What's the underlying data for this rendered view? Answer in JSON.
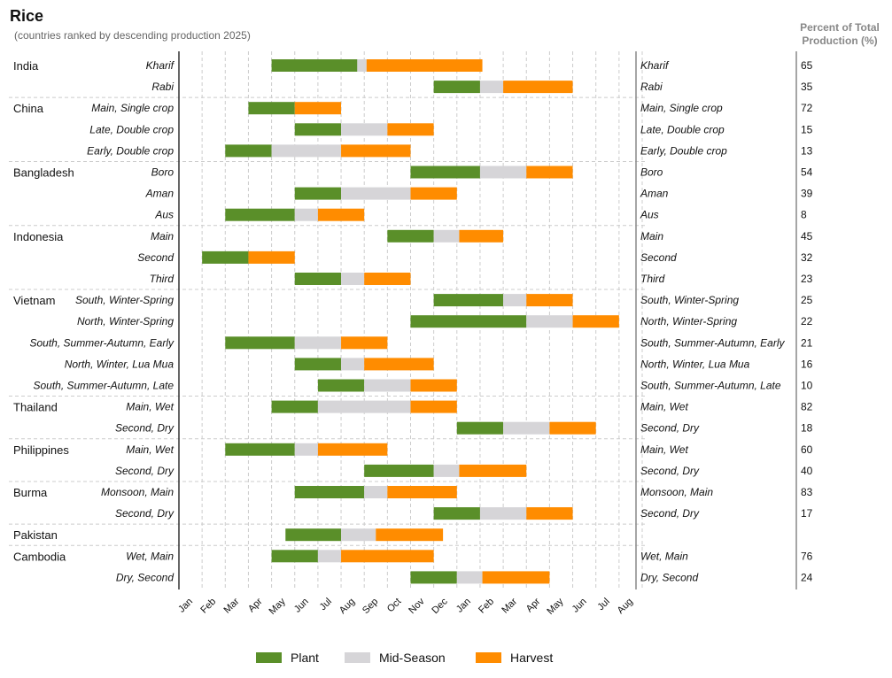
{
  "chart_data": {
    "type": "gantt",
    "title": "Rice",
    "subtitle": "(countries ranked by descending production 2025)",
    "pct_header": [
      "Percent of Total",
      "Production (%)"
    ],
    "months": [
      "Jan",
      "Feb",
      "Mar",
      "Apr",
      "May",
      "Jun",
      "Jul",
      "Aug",
      "Sep",
      "Oct",
      "Nov",
      "Dec",
      "Jan",
      "Feb",
      "Mar",
      "Apr",
      "May",
      "Jun",
      "Jul",
      "Aug"
    ],
    "legend": [
      {
        "name": "Plant",
        "color": "#5a8f29"
      },
      {
        "name": "Mid-Season",
        "color": "#d6d5d8"
      },
      {
        "name": "Harvest",
        "color": "#ff8c00"
      }
    ],
    "colors": {
      "plant": "#5a8f29",
      "mid": "#d6d5d8",
      "harvest": "#ff8c00",
      "grid": "#cccccc",
      "axis": "#333333"
    },
    "countries": [
      {
        "name": "India",
        "seasons": [
          {
            "label": "Kharif",
            "pct": "65",
            "plant": [
              4,
              7.7
            ],
            "mid": [
              7.7,
              8.1
            ],
            "harvest": [
              8.1,
              13.1
            ]
          },
          {
            "label": "Rabi",
            "pct": "35",
            "plant": [
              11,
              13
            ],
            "mid": [
              13,
              14
            ],
            "harvest": [
              14,
              17
            ]
          }
        ]
      },
      {
        "name": "China",
        "seasons": [
          {
            "label": "Main, Single crop",
            "pct": "72",
            "plant": [
              3,
              5
            ],
            "mid": null,
            "harvest": [
              5,
              7
            ]
          },
          {
            "label": "Late, Double crop",
            "pct": "15",
            "plant": [
              5,
              7
            ],
            "mid": [
              7,
              9
            ],
            "harvest": [
              9,
              11
            ]
          },
          {
            "label": "Early, Double crop",
            "pct": "13",
            "plant": [
              2,
              4
            ],
            "mid": [
              4,
              7
            ],
            "harvest": [
              7,
              10
            ]
          }
        ]
      },
      {
        "name": "Bangladesh",
        "seasons": [
          {
            "label": "Boro",
            "pct": "54",
            "plant": [
              10,
              13
            ],
            "mid": [
              13,
              15
            ],
            "harvest": [
              15,
              17
            ]
          },
          {
            "label": "Aman",
            "pct": "39",
            "plant": [
              5,
              7
            ],
            "mid": [
              7,
              10
            ],
            "harvest": [
              10,
              12
            ]
          },
          {
            "label": "Aus",
            "pct": "8",
            "plant": [
              2,
              5
            ],
            "mid": [
              5,
              6
            ],
            "harvest": [
              6,
              8
            ]
          }
        ]
      },
      {
        "name": "Indonesia",
        "seasons": [
          {
            "label": "Main",
            "pct": "45",
            "plant": [
              9,
              11
            ],
            "mid": [
              11,
              12.1
            ],
            "harvest": [
              12.1,
              14
            ]
          },
          {
            "label": "Second",
            "pct": "32",
            "plant": [
              1,
              3
            ],
            "mid": null,
            "harvest": [
              3,
              5
            ]
          },
          {
            "label": "Third",
            "pct": "23",
            "plant": [
              5,
              7
            ],
            "mid": [
              7,
              8
            ],
            "harvest": [
              8,
              10
            ]
          }
        ]
      },
      {
        "name": "Vietnam",
        "seasons": [
          {
            "label": "South, Winter-Spring",
            "pct": "25",
            "plant": [
              11,
              14
            ],
            "mid": [
              14,
              15
            ],
            "harvest": [
              15,
              17
            ]
          },
          {
            "label": "North, Winter-Spring",
            "pct": "22",
            "plant": [
              10,
              15
            ],
            "mid": [
              15,
              17
            ],
            "harvest": [
              17,
              19
            ]
          },
          {
            "label": "South, Summer-Autumn, Early",
            "pct": "21",
            "plant": [
              2,
              5
            ],
            "mid": [
              5,
              7
            ],
            "harvest": [
              7,
              9
            ]
          },
          {
            "label": "North, Winter, Lua Mua",
            "pct": "16",
            "plant": [
              5,
              7
            ],
            "mid": [
              7,
              8
            ],
            "harvest": [
              8,
              11
            ]
          },
          {
            "label": "South, Summer-Autumn, Late",
            "pct": "10",
            "plant": [
              6,
              8
            ],
            "mid": [
              8,
              10
            ],
            "harvest": [
              10,
              12
            ]
          }
        ]
      },
      {
        "name": "Thailand",
        "seasons": [
          {
            "label": "Main, Wet",
            "pct": "82",
            "plant": [
              4,
              6
            ],
            "mid": [
              6,
              10
            ],
            "harvest": [
              10,
              12
            ]
          },
          {
            "label": "Second, Dry",
            "pct": "18",
            "plant": [
              12,
              14
            ],
            "mid": [
              14,
              16
            ],
            "harvest": [
              16,
              18
            ]
          }
        ]
      },
      {
        "name": "Philippines",
        "seasons": [
          {
            "label": "Main, Wet",
            "pct": "60",
            "plant": [
              2,
              5
            ],
            "mid": [
              5,
              6
            ],
            "harvest": [
              6,
              9
            ]
          },
          {
            "label": "Second, Dry",
            "pct": "40",
            "plant": [
              8,
              11
            ],
            "mid": [
              11,
              12.1
            ],
            "harvest": [
              12.1,
              15
            ]
          }
        ]
      },
      {
        "name": "Burma",
        "seasons": [
          {
            "label": "Monsoon, Main",
            "pct": "83",
            "plant": [
              5,
              8
            ],
            "mid": [
              8,
              9
            ],
            "harvest": [
              9,
              12
            ]
          },
          {
            "label": "Second, Dry",
            "pct": "17",
            "plant": [
              11,
              13
            ],
            "mid": [
              13,
              15
            ],
            "harvest": [
              15,
              17
            ]
          }
        ]
      },
      {
        "name": "Pakistan",
        "seasons": [
          {
            "label": "",
            "pct": "",
            "plant": [
              4.6,
              7
            ],
            "mid": [
              7,
              8.5
            ],
            "harvest": [
              8.5,
              11.4
            ]
          }
        ]
      },
      {
        "name": "Cambodia",
        "seasons": [
          {
            "label": "Wet, Main",
            "pct": "76",
            "plant": [
              4,
              6
            ],
            "mid": [
              6,
              7
            ],
            "harvest": [
              7,
              11
            ]
          },
          {
            "label": "Dry, Second",
            "pct": "24",
            "plant": [
              10,
              12
            ],
            "mid": [
              12,
              13.1
            ],
            "harvest": [
              13.1,
              16
            ]
          }
        ]
      }
    ]
  }
}
